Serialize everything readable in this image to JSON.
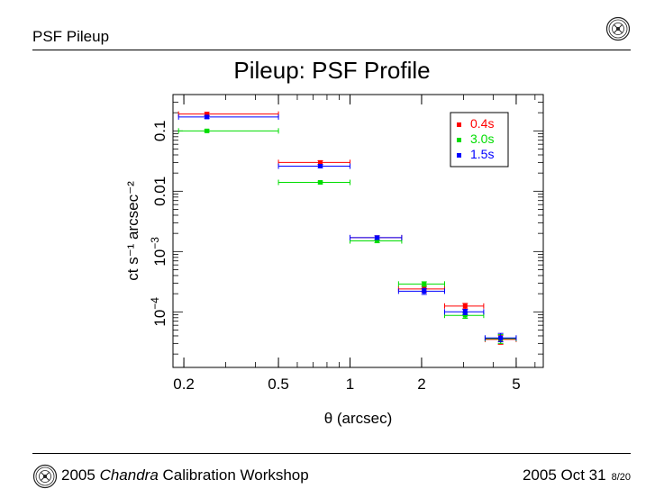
{
  "header": {
    "title": "PSF Pileup"
  },
  "slide": {
    "title": "Pileup: PSF Profile"
  },
  "footer": {
    "workshop_prefix": "2005",
    "workshop_italic": "Chandra",
    "workshop_suffix": "Calibration Workshop",
    "date": "2005 Oct 31",
    "page": "8/20"
  },
  "chart_data": {
    "type": "scatter",
    "title": "",
    "xlabel": "θ (arcsec)",
    "ylabel": "ct s⁻¹ arcsec⁻²",
    "xscale": "log",
    "yscale": "log",
    "xlim": [
      0.18,
      6.5
    ],
    "ylim": [
      1.2e-05,
      0.4
    ],
    "x_ticks": [
      {
        "value": 0.2,
        "label": "0.2"
      },
      {
        "value": 0.5,
        "label": "0.5"
      },
      {
        "value": 1,
        "label": "1"
      },
      {
        "value": 2,
        "label": "2"
      },
      {
        "value": 5,
        "label": "5"
      }
    ],
    "y_ticks": [
      {
        "value": 0.0001,
        "base": "10",
        "exp": "−4"
      },
      {
        "value": 0.001,
        "base": "10",
        "exp": "−3"
      },
      {
        "value": 0.01,
        "label": "0.01"
      },
      {
        "value": 0.1,
        "label": "0.1"
      }
    ],
    "legend_position": "top-right",
    "series": [
      {
        "name": "0.4s",
        "color": "#ff0000",
        "points": [
          {
            "x": 0.25,
            "y": 0.19,
            "xlo": 0.19,
            "xhi": 0.5,
            "ylo": 0.178,
            "yhi": 0.203
          },
          {
            "x": 0.75,
            "y": 0.03,
            "xlo": 0.5,
            "xhi": 1.0,
            "ylo": 0.028,
            "yhi": 0.032
          },
          {
            "x": 1.3,
            "y": 0.0017,
            "xlo": 1.0,
            "xhi": 1.65,
            "ylo": 0.00158,
            "yhi": 0.00182
          },
          {
            "x": 2.05,
            "y": 0.00024,
            "xlo": 1.6,
            "xhi": 2.5,
            "ylo": 0.00021,
            "yhi": 0.00027
          },
          {
            "x": 3.05,
            "y": 0.000125,
            "xlo": 2.5,
            "xhi": 3.65,
            "ylo": 0.000112,
            "yhi": 0.000138
          },
          {
            "x": 4.3,
            "y": 3.5e-05,
            "xlo": 3.7,
            "xhi": 5.0,
            "ylo": 2.9e-05,
            "yhi": 4.1e-05
          }
        ]
      },
      {
        "name": "3.0s",
        "color": "#00dd00",
        "points": [
          {
            "x": 0.25,
            "y": 0.1,
            "xlo": 0.19,
            "xhi": 0.5,
            "ylo": 0.095,
            "yhi": 0.105
          },
          {
            "x": 0.75,
            "y": 0.014,
            "xlo": 0.5,
            "xhi": 1.0,
            "ylo": 0.0133,
            "yhi": 0.0147
          },
          {
            "x": 1.3,
            "y": 0.0015,
            "xlo": 1.0,
            "xhi": 1.65,
            "ylo": 0.0014,
            "yhi": 0.0016
          },
          {
            "x": 2.05,
            "y": 0.00029,
            "xlo": 1.6,
            "xhi": 2.5,
            "ylo": 0.000265,
            "yhi": 0.000315
          },
          {
            "x": 3.05,
            "y": 8.75e-05,
            "xlo": 2.5,
            "xhi": 3.65,
            "ylo": 7.8e-05,
            "yhi": 9.7e-05
          },
          {
            "x": 4.3,
            "y": 3.6e-05,
            "xlo": 3.7,
            "xhi": 5.0,
            "ylo": 3e-05,
            "yhi": 4.2e-05
          }
        ]
      },
      {
        "name": "1.5s",
        "color": "#0000ff",
        "points": [
          {
            "x": 0.25,
            "y": 0.17,
            "xlo": 0.19,
            "xhi": 0.5,
            "ylo": 0.16,
            "yhi": 0.18
          },
          {
            "x": 0.75,
            "y": 0.026,
            "xlo": 0.5,
            "xhi": 1.0,
            "ylo": 0.0245,
            "yhi": 0.0275
          },
          {
            "x": 1.3,
            "y": 0.0017,
            "xlo": 1.0,
            "xhi": 1.65,
            "ylo": 0.00158,
            "yhi": 0.00182
          },
          {
            "x": 2.05,
            "y": 0.00022,
            "xlo": 1.6,
            "xhi": 2.5,
            "ylo": 0.000195,
            "yhi": 0.000245
          },
          {
            "x": 3.05,
            "y": 0.0001,
            "xlo": 2.5,
            "xhi": 3.65,
            "ylo": 9e-05,
            "yhi": 0.00011
          },
          {
            "x": 4.3,
            "y": 3.7e-05,
            "xlo": 3.7,
            "xhi": 5.0,
            "ylo": 3.2e-05,
            "yhi": 4.4e-05
          }
        ]
      }
    ]
  }
}
